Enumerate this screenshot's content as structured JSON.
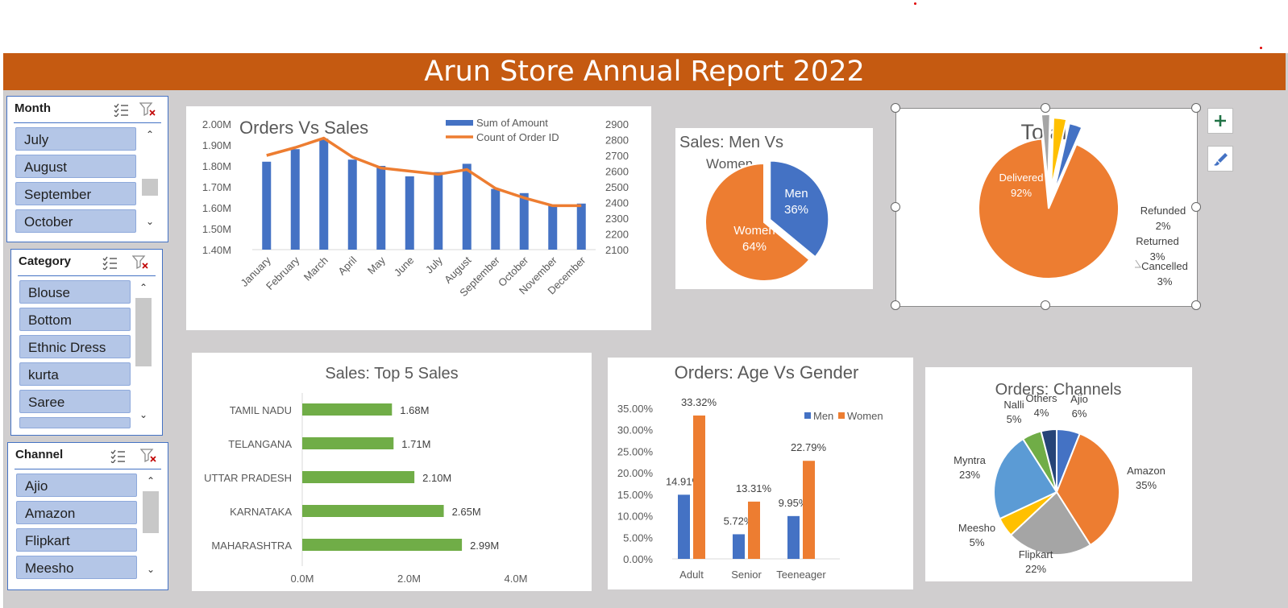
{
  "report": {
    "title": "Arun Store Annual Report 2022"
  },
  "slicers": {
    "month": {
      "header": "Month",
      "items": [
        "July",
        "August",
        "September",
        "October"
      ]
    },
    "category": {
      "header": "Category",
      "items": [
        "Blouse",
        "Bottom",
        "Ethnic Dress",
        "kurta",
        "Saree"
      ]
    },
    "channel": {
      "header": "Channel",
      "items": [
        "Ajio",
        "Amazon",
        "Flipkart",
        "Meesho"
      ]
    },
    "icons": {
      "multi_select": "multi-select-icon",
      "clear_filter": "clear-filter-icon"
    }
  },
  "chart_data": [
    {
      "type": "bar",
      "title": "Orders Vs Sales",
      "categories": [
        "January",
        "February",
        "March",
        "April",
        "May",
        "June",
        "July",
        "August",
        "September",
        "October",
        "November",
        "December"
      ],
      "series": [
        {
          "name": "Sum of Amount",
          "type": "bar",
          "axis": "left",
          "values": [
            1.82,
            1.88,
            1.93,
            1.83,
            1.8,
            1.75,
            1.77,
            1.81,
            1.69,
            1.67,
            1.61,
            1.62
          ],
          "color": "#4472c4"
        },
        {
          "name": "Count of Order ID",
          "type": "line",
          "axis": "right",
          "values": [
            2700,
            2750,
            2810,
            2690,
            2620,
            2600,
            2580,
            2610,
            2490,
            2430,
            2380,
            2380
          ],
          "color": "#ed7d31"
        }
      ],
      "y_left": {
        "ticks": [
          "2.00M",
          "1.90M",
          "1.80M",
          "1.70M",
          "1.60M",
          "1.50M",
          "1.40M"
        ],
        "min": 1.4,
        "max": 2.0
      },
      "y_right": {
        "ticks": [
          "2900",
          "2800",
          "2700",
          "2600",
          "2500",
          "2400",
          "2300",
          "2200",
          "2100"
        ],
        "min": 2100,
        "max": 2900
      },
      "legend": "top-right"
    },
    {
      "type": "pie",
      "title": "Sales: Men Vs Women",
      "slices": [
        {
          "label": "Men",
          "value": 36,
          "text": "36%",
          "color": "#4472c4"
        },
        {
          "label": "Women",
          "value": 64,
          "text": "64%",
          "color": "#ed7d31"
        }
      ]
    },
    {
      "type": "pie",
      "title": "Total",
      "slices": [
        {
          "label": "Delivered",
          "value": 92,
          "text": "92%",
          "color": "#ed7d31"
        },
        {
          "label": "Refunded",
          "value": 2,
          "text": "2%",
          "color": "#a5a5a5"
        },
        {
          "label": "Returned",
          "value": 3,
          "text": "3%",
          "color": "#ffc000"
        },
        {
          "label": "Cancelled",
          "value": 3,
          "text": "3%",
          "color": "#4472c4"
        }
      ]
    },
    {
      "type": "bar",
      "orientation": "horizontal",
      "title": "Sales: Top 5 Sales",
      "categories": [
        "TAMIL NADU",
        "TELANGANA",
        "UTTAR PRADESH",
        "KARNATAKA",
        "MAHARASHTRA"
      ],
      "values": [
        1.68,
        1.71,
        2.1,
        2.65,
        2.99
      ],
      "labels": [
        "1.68M",
        "1.71M",
        "2.10M",
        "2.65M",
        "2.99M"
      ],
      "x_ticks": [
        "0.0M",
        "2.0M",
        "4.0M"
      ],
      "xlim": [
        0,
        4
      ],
      "color": "#70ad47"
    },
    {
      "type": "bar",
      "title": "Orders: Age Vs Gender",
      "categories": [
        "Adult",
        "Senior",
        "Teeneager"
      ],
      "series": [
        {
          "name": "Men",
          "values": [
            14.91,
            5.72,
            9.95
          ],
          "labels": [
            "14.91%",
            "5.72%",
            "9.95%"
          ],
          "color": "#4472c4"
        },
        {
          "name": "Women",
          "values": [
            33.32,
            13.31,
            22.79
          ],
          "labels": [
            "33.32%",
            "13.31%",
            "22.79%"
          ],
          "color": "#ed7d31"
        }
      ],
      "y_ticks": [
        "35.00%",
        "30.00%",
        "25.00%",
        "20.00%",
        "15.00%",
        "10.00%",
        "5.00%",
        "0.00%"
      ],
      "ylim": [
        0,
        35
      ],
      "legend": "top-right"
    },
    {
      "type": "pie",
      "title": "Orders: Channels",
      "slices": [
        {
          "label": "Ajio",
          "value": 6,
          "text": "6%",
          "color": "#4472c4"
        },
        {
          "label": "Amazon",
          "value": 35,
          "text": "35%",
          "color": "#ed7d31"
        },
        {
          "label": "Flipkart",
          "value": 22,
          "text": "22%",
          "color": "#a5a5a5"
        },
        {
          "label": "Meesho",
          "value": 5,
          "text": "5%",
          "color": "#ffc000"
        },
        {
          "label": "Myntra",
          "value": 23,
          "text": "23%",
          "color": "#5b9bd5"
        },
        {
          "label": "Nalli",
          "value": 5,
          "text": "5%",
          "color": "#70ad47"
        },
        {
          "label": "Others",
          "value": 4,
          "text": "4%",
          "color": "#264478"
        }
      ]
    }
  ],
  "chart_tools": {
    "add_element": "plus-icon",
    "style": "brush-icon"
  }
}
